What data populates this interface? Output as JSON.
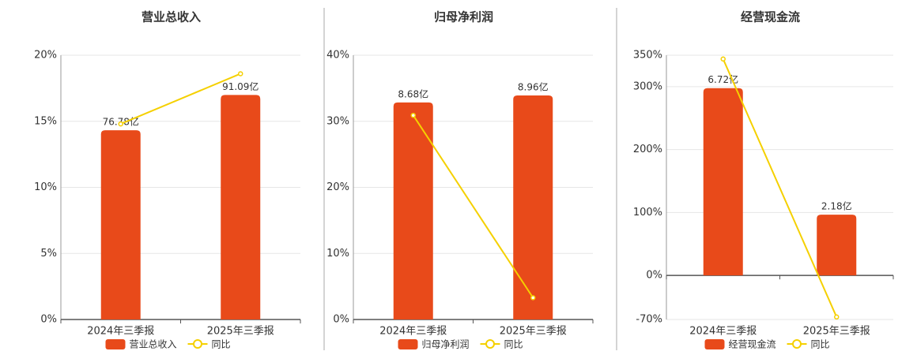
{
  "chart_data": [
    {
      "type": "bar-line",
      "title": "营业总收入",
      "categories": [
        "2024年三季报",
        "2025年三季报"
      ],
      "series": [
        {
          "name": "营业总收入",
          "color": "#e84a1a",
          "axis": "y2",
          "values": [
            76.78,
            91.09
          ],
          "value_labels": [
            "76.78亿",
            "91.09亿"
          ]
        },
        {
          "name": "同比",
          "color": "#f5d000",
          "values": [
            14.8,
            18.6
          ]
        }
      ],
      "ylim": [
        0,
        20
      ],
      "yticks": [
        {
          "value": 0,
          "label": "0%"
        },
        {
          "value": 5,
          "label": "5%"
        },
        {
          "value": 10,
          "label": "10%"
        },
        {
          "value": 15,
          "label": "15%"
        },
        {
          "value": 20,
          "label": "20%"
        }
      ],
      "y2lim": [
        0,
        107.2
      ],
      "grid": true
    },
    {
      "type": "bar-line",
      "title": "归母净利润",
      "categories": [
        "2024年三季报",
        "2025年三季报"
      ],
      "series": [
        {
          "name": "归母净利润",
          "color": "#e84a1a",
          "axis": "y2",
          "values": [
            8.68,
            8.96
          ],
          "value_labels": [
            "8.68亿",
            "8.96亿"
          ]
        },
        {
          "name": "同比",
          "color": "#f5d000",
          "values": [
            30.9,
            3.3
          ]
        }
      ],
      "ylim": [
        0,
        40
      ],
      "yticks": [
        {
          "value": 0,
          "label": "0%"
        },
        {
          "value": 10,
          "label": "10%"
        },
        {
          "value": 20,
          "label": "20%"
        },
        {
          "value": 30,
          "label": "30%"
        },
        {
          "value": 40,
          "label": "40%"
        }
      ],
      "y2lim": [
        0,
        10.57
      ],
      "grid": true
    },
    {
      "type": "bar-line",
      "title": "经营现金流",
      "categories": [
        "2024年三季报",
        "2025年三季报"
      ],
      "series": [
        {
          "name": "经营现金流",
          "color": "#e84a1a",
          "axis": "y2",
          "values": [
            6.72,
            2.18
          ],
          "value_labels": [
            "6.72亿",
            "2.18亿"
          ]
        },
        {
          "name": "同比",
          "color": "#f5d000",
          "values": [
            344,
            -66
          ]
        }
      ],
      "ylim": [
        -70,
        350
      ],
      "yticks": [
        {
          "value": -70,
          "label": "-70%"
        },
        {
          "value": 0,
          "label": "0%"
        },
        {
          "value": 100,
          "label": "100%"
        },
        {
          "value": 200,
          "label": "200%"
        },
        {
          "value": 300,
          "label": "300%"
        },
        {
          "value": 350,
          "label": "350%"
        }
      ],
      "y2lim": [
        -1.58,
        7.9
      ],
      "grid": true
    }
  ]
}
